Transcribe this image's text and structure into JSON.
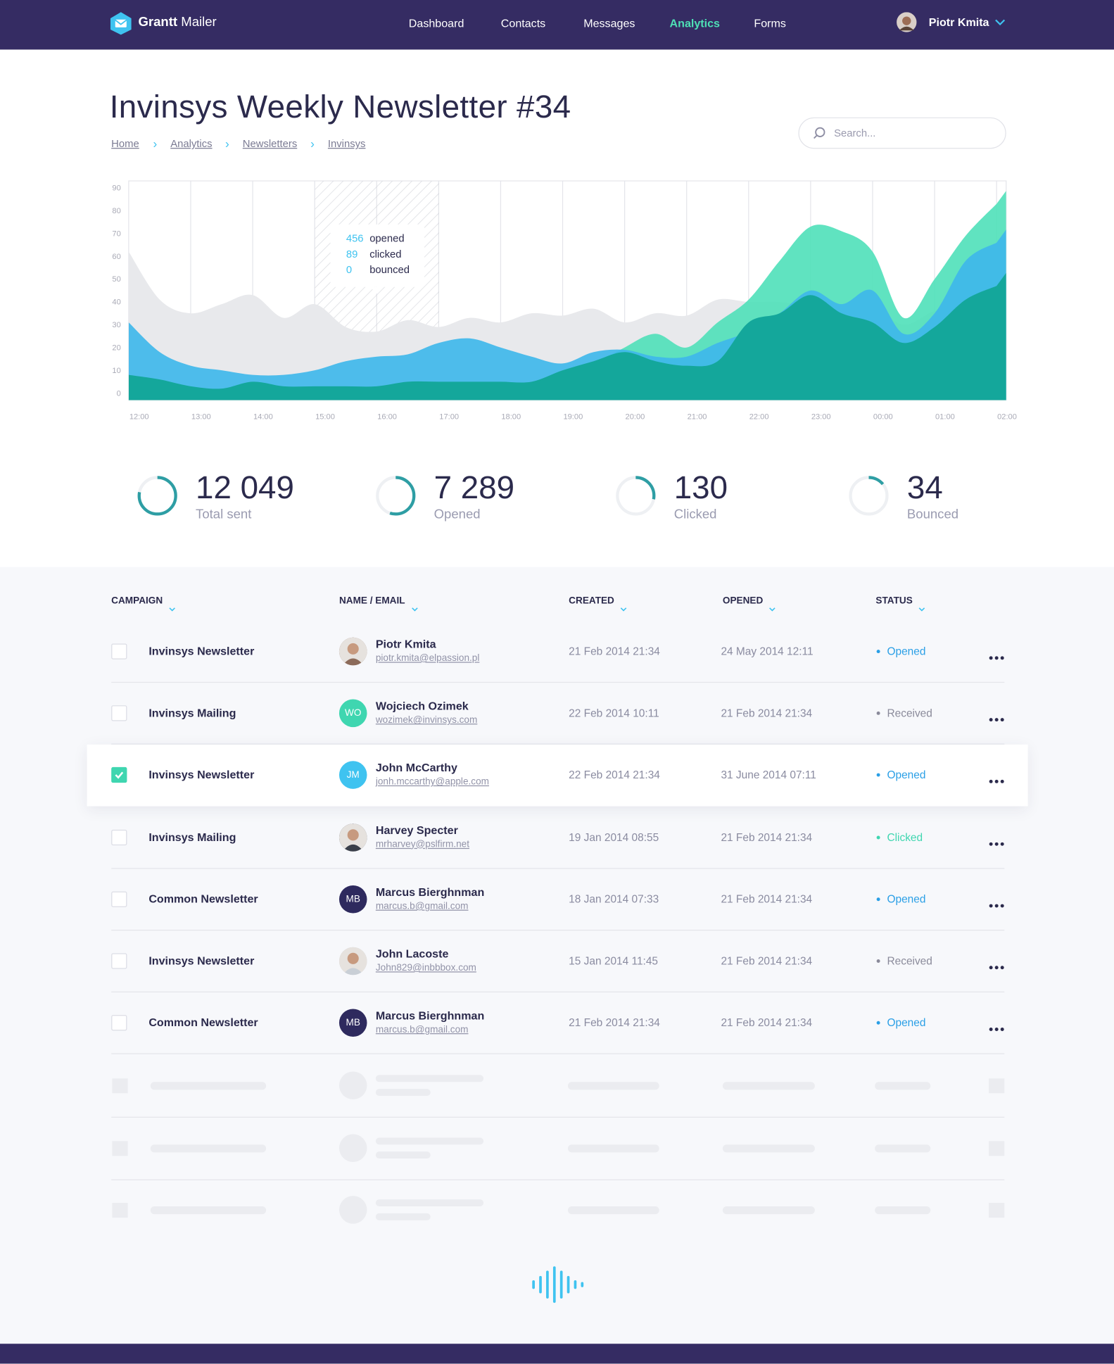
{
  "nav": {
    "brand": "Grantt",
    "brand_suffix": "Mailer",
    "menu": [
      {
        "label": "Dashboard",
        "active": false
      },
      {
        "label": "Contacts",
        "active": false
      },
      {
        "label": "Messages",
        "active": false
      },
      {
        "label": "Analytics",
        "active": true
      },
      {
        "label": "Forms",
        "active": false
      }
    ],
    "user": "Piotr Kmita"
  },
  "header": {
    "title": "Invinsys Weekly Newsletter #34",
    "breadcrumbs": [
      "Home",
      "Analytics",
      "Newsletters",
      "Invinsys"
    ],
    "search_placeholder": "Search..."
  },
  "chart_data": {
    "type": "area",
    "categories": [
      "12:00",
      null,
      "13:00",
      null,
      "14:00",
      null,
      "15:00",
      null,
      "16:00",
      null,
      "17:00",
      null,
      "18:00",
      null,
      "19:00",
      null,
      "20:00",
      null,
      "21:00",
      null,
      "22:00",
      null,
      "23:00",
      null,
      "00:00",
      null,
      "01:00",
      null,
      "02:00"
    ],
    "series": [
      {
        "color": "#e8e9ec",
        "values": [
          62,
          41,
          35,
          39,
          43,
          33,
          39,
          29,
          27,
          32,
          29,
          33,
          31,
          35,
          34,
          37,
          31,
          35,
          34,
          41,
          40,
          40,
          38,
          38,
          38,
          30,
          36,
          38,
          40
        ]
      },
      {
        "color": "#4fe0b9",
        "values": [
          0,
          0,
          0,
          0,
          0,
          0,
          0,
          0,
          0,
          0,
          0,
          0,
          0,
          0,
          0,
          12,
          20,
          26,
          20,
          31,
          41,
          58,
          73,
          71,
          62,
          33,
          50,
          69,
          83
        ]
      },
      {
        "color": "#3fb7ea",
        "values": [
          31,
          18,
          12,
          10,
          8,
          8,
          10,
          14,
          16,
          17,
          22,
          24,
          20,
          16,
          13,
          18,
          19,
          16,
          16,
          22,
          27,
          35,
          45,
          39,
          45,
          26,
          35,
          58,
          66
        ]
      },
      {
        "color": "#14a79b",
        "values": [
          8,
          6,
          3,
          2,
          5,
          3,
          3,
          3,
          3,
          5,
          5,
          5,
          5,
          5,
          10,
          14,
          18,
          14,
          12,
          14,
          31,
          35,
          43,
          35,
          31,
          22,
          29,
          41,
          47
        ]
      }
    ],
    "ylim": [
      0,
      90
    ],
    "yticks": [
      0,
      10,
      20,
      30,
      40,
      50,
      60,
      70,
      80,
      90
    ],
    "grid": true,
    "tooltip": [
      {
        "value": 456,
        "label": "opened"
      },
      {
        "value": 89,
        "label": "clicked"
      },
      {
        "value": 0,
        "label": "bounced"
      }
    ]
  },
  "stats": [
    {
      "value": "12 049",
      "label": "Total sent"
    },
    {
      "value": "7 289",
      "label": "Opened"
    },
    {
      "value": "130",
      "label": "Clicked"
    },
    {
      "value": "34",
      "label": "Bounced"
    }
  ],
  "table": {
    "columns": [
      "CAMPAIGN",
      "NAME / EMAIL",
      "CREATED",
      "OPENED",
      "STATUS"
    ],
    "rows": [
      {
        "checked": false,
        "campaign": "Invinsys Newsletter",
        "avatar": {
          "color": "#8c6b5a"
        },
        "name": "Piotr Kmita",
        "email": "piotr.kmita@elpassion.pl",
        "created": "21 Feb 2014 21:34",
        "opened": "24 May 2014 12:11",
        "status": "Opened",
        "status_color": "#2a9fe6"
      },
      {
        "checked": false,
        "campaign": "Invinsys Mailing",
        "avatar": {
          "initials": "WO",
          "color": "#3fd6b0"
        },
        "name": "Wojciech Ozimek",
        "email": "wozimek@invinsys.com",
        "created": "22 Feb 2014 10:11",
        "opened": "21 Feb 2014 21:34",
        "status": "Received",
        "status_color": "#8a8a9a"
      },
      {
        "checked": true,
        "campaign": "Invinsys Newsletter",
        "avatar": {
          "initials": "JM",
          "color": "#3fc3f0"
        },
        "name": "John McCarthy",
        "email": "jonh.mccarthy@apple.com",
        "created": "22 Feb 2014 21:34",
        "opened": "31 June 2014 07:11",
        "status": "Opened",
        "status_color": "#2a9fe6"
      },
      {
        "checked": false,
        "campaign": "Invinsys Mailing",
        "avatar": {
          "color": "#3a3f4a"
        },
        "name": "Harvey Specter",
        "email": "mrharvey@pslfirm.net",
        "created": "19 Jan 2014 08:55",
        "opened": "21 Feb 2014 21:34",
        "status": "Clicked",
        "status_color": "#3fd6b0"
      },
      {
        "checked": false,
        "campaign": "Common Newsletter",
        "avatar": {
          "initials": "MB",
          "color": "#2e2a5e"
        },
        "name": "Marcus Bierghnman",
        "email": "marcus.b@gmail.com",
        "created": "18 Jan 2014 07:33",
        "opened": "21 Feb 2014 21:34",
        "status": "Opened",
        "status_color": "#2a9fe6"
      },
      {
        "checked": false,
        "campaign": "Invinsys Newsletter",
        "avatar": {
          "color": "#c9cfd6"
        },
        "name": "John Lacoste",
        "email": "John829@inbbbox.com",
        "created": "15 Jan 2014 11:45",
        "opened": "21 Feb 2014 21:34",
        "status": "Received",
        "status_color": "#8a8a9a"
      },
      {
        "checked": false,
        "campaign": "Common Newsletter",
        "avatar": {
          "initials": "MB",
          "color": "#2e2a5e"
        },
        "name": "Marcus Bierghnman",
        "email": "marcus.b@gmail.com",
        "created": "21 Feb 2014 21:34",
        "opened": "21 Feb 2014 21:34",
        "status": "Opened",
        "status_color": "#2a9fe6"
      }
    ]
  }
}
